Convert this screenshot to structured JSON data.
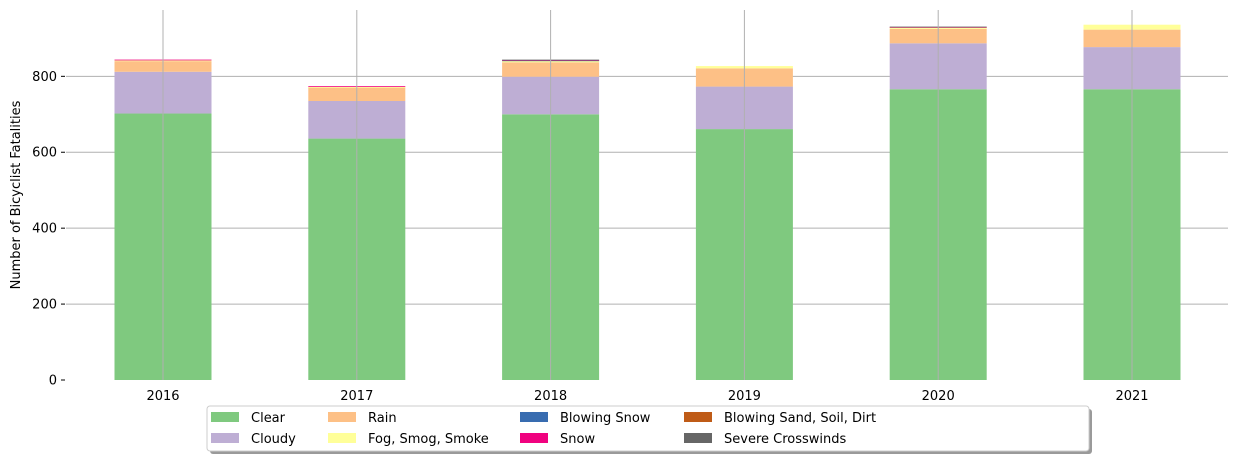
{
  "chart_data": {
    "type": "bar",
    "stacked": true,
    "title": "",
    "xlabel": "",
    "ylabel": "Number of Bicyclist Fatalities",
    "ylim": [
      0,
      980
    ],
    "yticks": [
      0,
      200,
      400,
      600,
      800
    ],
    "grid": true,
    "legend_position": "bottom-center",
    "legend_columns": 5,
    "categories": [
      "2016",
      "2017",
      "2018",
      "2019",
      "2020",
      "2021"
    ],
    "series": [
      {
        "name": "Clear",
        "color": "#7fc97f",
        "values": [
          702,
          636,
          700,
          661,
          766,
          766
        ]
      },
      {
        "name": "Cloudy",
        "color": "#beaed4",
        "values": [
          110,
          99,
          99,
          112,
          121,
          111
        ]
      },
      {
        "name": "Rain",
        "color": "#fdc086",
        "values": [
          28,
          36,
          38,
          48,
          38,
          46
        ]
      },
      {
        "name": "Fog, Smog, Smoke",
        "color": "#ffff99",
        "values": [
          2,
          1,
          4,
          6,
          4,
          13
        ]
      },
      {
        "name": "Blowing Snow",
        "color": "#386cb0",
        "values": [
          0,
          0,
          1,
          0,
          0,
          0
        ]
      },
      {
        "name": "Snow",
        "color": "#f0027f",
        "values": [
          2,
          2,
          1,
          0,
          1,
          0
        ]
      },
      {
        "name": "Blowing Sand, Soil, Dirt",
        "color": "#bf5b17",
        "values": [
          0,
          0,
          0,
          0,
          0,
          0
        ]
      },
      {
        "name": "Severe Crosswinds",
        "color": "#666666",
        "values": [
          0,
          0,
          1,
          0,
          1,
          0
        ]
      }
    ]
  }
}
